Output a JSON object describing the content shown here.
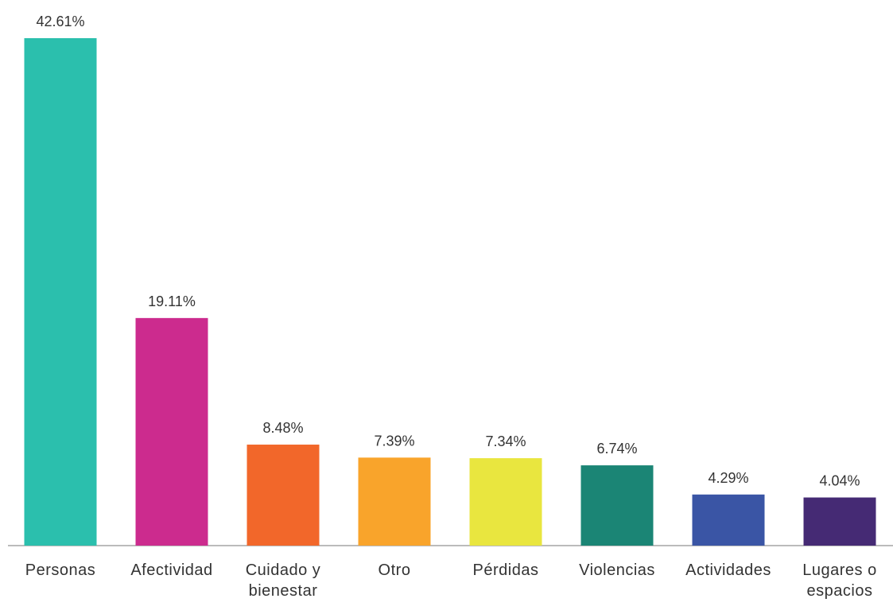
{
  "chart_data": {
    "type": "bar",
    "categories": [
      "Personas",
      "Afectividad",
      "Cuidado y bienestar",
      "Otro",
      "Pérdidas",
      "Violencias",
      "Actividades",
      "Lugares o espacios"
    ],
    "values": [
      42.61,
      19.11,
      8.48,
      7.39,
      7.34,
      6.74,
      4.29,
      4.04
    ],
    "value_labels": [
      "42.61%",
      "19.11%",
      "8.48%",
      "7.39%",
      "7.34%",
      "6.74%",
      "4.29%",
      "4.04%"
    ],
    "colors": [
      "#2bbfad",
      "#cc2b8e",
      "#f2672a",
      "#f9a42b",
      "#e9e63f",
      "#1b8575",
      "#3a55a5",
      "#452a74"
    ]
  }
}
